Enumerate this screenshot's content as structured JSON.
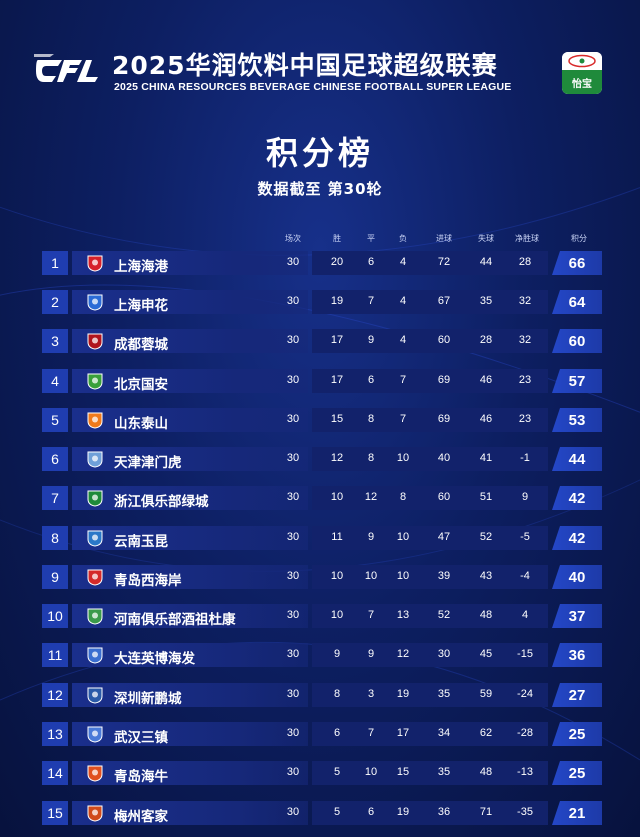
{
  "header": {
    "league_logo_text": "CFL",
    "title_cn": "2025华润饮料中国足球超级联赛",
    "title_en": "2025 CHINA RESOURCES BEVERAGE CHINESE FOOTBALL SUPER LEAGUE",
    "sponsor_label": "怡宝",
    "sponsor_color": "#1f8a3b"
  },
  "page": {
    "title": "积分榜",
    "subtitle": "数据截至 第30轮"
  },
  "columns": [
    "场次",
    "胜",
    "平",
    "负",
    "进球",
    "失球",
    "净胜球",
    "积分"
  ],
  "colors": {
    "accent": "#1f3db0",
    "points_box": "#2447c7",
    "stats_bar": "#12226b"
  },
  "teams": [
    {
      "rank": "1",
      "name": "上海海港",
      "played": "30",
      "won": "20",
      "drawn": "6",
      "lost": "4",
      "gf": "72",
      "ga": "44",
      "gd": "28",
      "pts": "66",
      "logo_color": "#d6202a"
    },
    {
      "rank": "2",
      "name": "上海申花",
      "played": "30",
      "won": "19",
      "drawn": "7",
      "lost": "4",
      "gf": "67",
      "ga": "35",
      "gd": "32",
      "pts": "64",
      "logo_color": "#2b6bd6"
    },
    {
      "rank": "3",
      "name": "成都蓉城",
      "played": "30",
      "won": "17",
      "drawn": "9",
      "lost": "4",
      "gf": "60",
      "ga": "28",
      "gd": "32",
      "pts": "60",
      "logo_color": "#b0141e"
    },
    {
      "rank": "4",
      "name": "北京国安",
      "played": "30",
      "won": "17",
      "drawn": "6",
      "lost": "7",
      "gf": "69",
      "ga": "46",
      "gd": "23",
      "pts": "57",
      "logo_color": "#3aa03a"
    },
    {
      "rank": "5",
      "name": "山东泰山",
      "played": "30",
      "won": "15",
      "drawn": "8",
      "lost": "7",
      "gf": "69",
      "ga": "46",
      "gd": "23",
      "pts": "53",
      "logo_color": "#f07a1a"
    },
    {
      "rank": "6",
      "name": "天津津门虎",
      "played": "30",
      "won": "12",
      "drawn": "8",
      "lost": "10",
      "gf": "40",
      "ga": "41",
      "gd": "-1",
      "pts": "44",
      "logo_color": "#6fa0d8"
    },
    {
      "rank": "7",
      "name": "浙江俱乐部绿城",
      "played": "30",
      "won": "10",
      "drawn": "12",
      "lost": "8",
      "gf": "60",
      "ga": "51",
      "gd": "9",
      "pts": "42",
      "logo_color": "#1e8a3a"
    },
    {
      "rank": "8",
      "name": "云南玉昆",
      "played": "30",
      "won": "11",
      "drawn": "9",
      "lost": "10",
      "gf": "47",
      "ga": "52",
      "gd": "-5",
      "pts": "42",
      "logo_color": "#2a78c8"
    },
    {
      "rank": "9",
      "name": "青岛西海岸",
      "played": "30",
      "won": "10",
      "drawn": "10",
      "lost": "10",
      "gf": "39",
      "ga": "43",
      "gd": "-4",
      "pts": "40",
      "logo_color": "#d42a2a"
    },
    {
      "rank": "10",
      "name": "河南俱乐部酒祖杜康",
      "played": "30",
      "won": "10",
      "drawn": "7",
      "lost": "13",
      "gf": "52",
      "ga": "48",
      "gd": "4",
      "pts": "37",
      "logo_color": "#3a9a4a"
    },
    {
      "rank": "11",
      "name": "大连英博海发",
      "played": "30",
      "won": "9",
      "drawn": "9",
      "lost": "12",
      "gf": "30",
      "ga": "45",
      "gd": "-15",
      "pts": "36",
      "logo_color": "#3a6ed0"
    },
    {
      "rank": "12",
      "name": "深圳新鹏城",
      "played": "30",
      "won": "8",
      "drawn": "3",
      "lost": "19",
      "gf": "35",
      "ga": "59",
      "gd": "-24",
      "pts": "27",
      "logo_color": "#2a5aa8"
    },
    {
      "rank": "13",
      "name": "武汉三镇",
      "played": "30",
      "won": "6",
      "drawn": "7",
      "lost": "17",
      "gf": "34",
      "ga": "62",
      "gd": "-28",
      "pts": "25",
      "logo_color": "#4a7ad8"
    },
    {
      "rank": "14",
      "name": "青岛海牛",
      "played": "30",
      "won": "5",
      "drawn": "10",
      "lost": "15",
      "gf": "35",
      "ga": "48",
      "gd": "-13",
      "pts": "25",
      "logo_color": "#e05020"
    },
    {
      "rank": "15",
      "name": "梅州客家",
      "played": "30",
      "won": "5",
      "drawn": "6",
      "lost": "19",
      "gf": "36",
      "ga": "71",
      "gd": "-35",
      "pts": "21",
      "logo_color": "#d04a1a"
    }
  ]
}
